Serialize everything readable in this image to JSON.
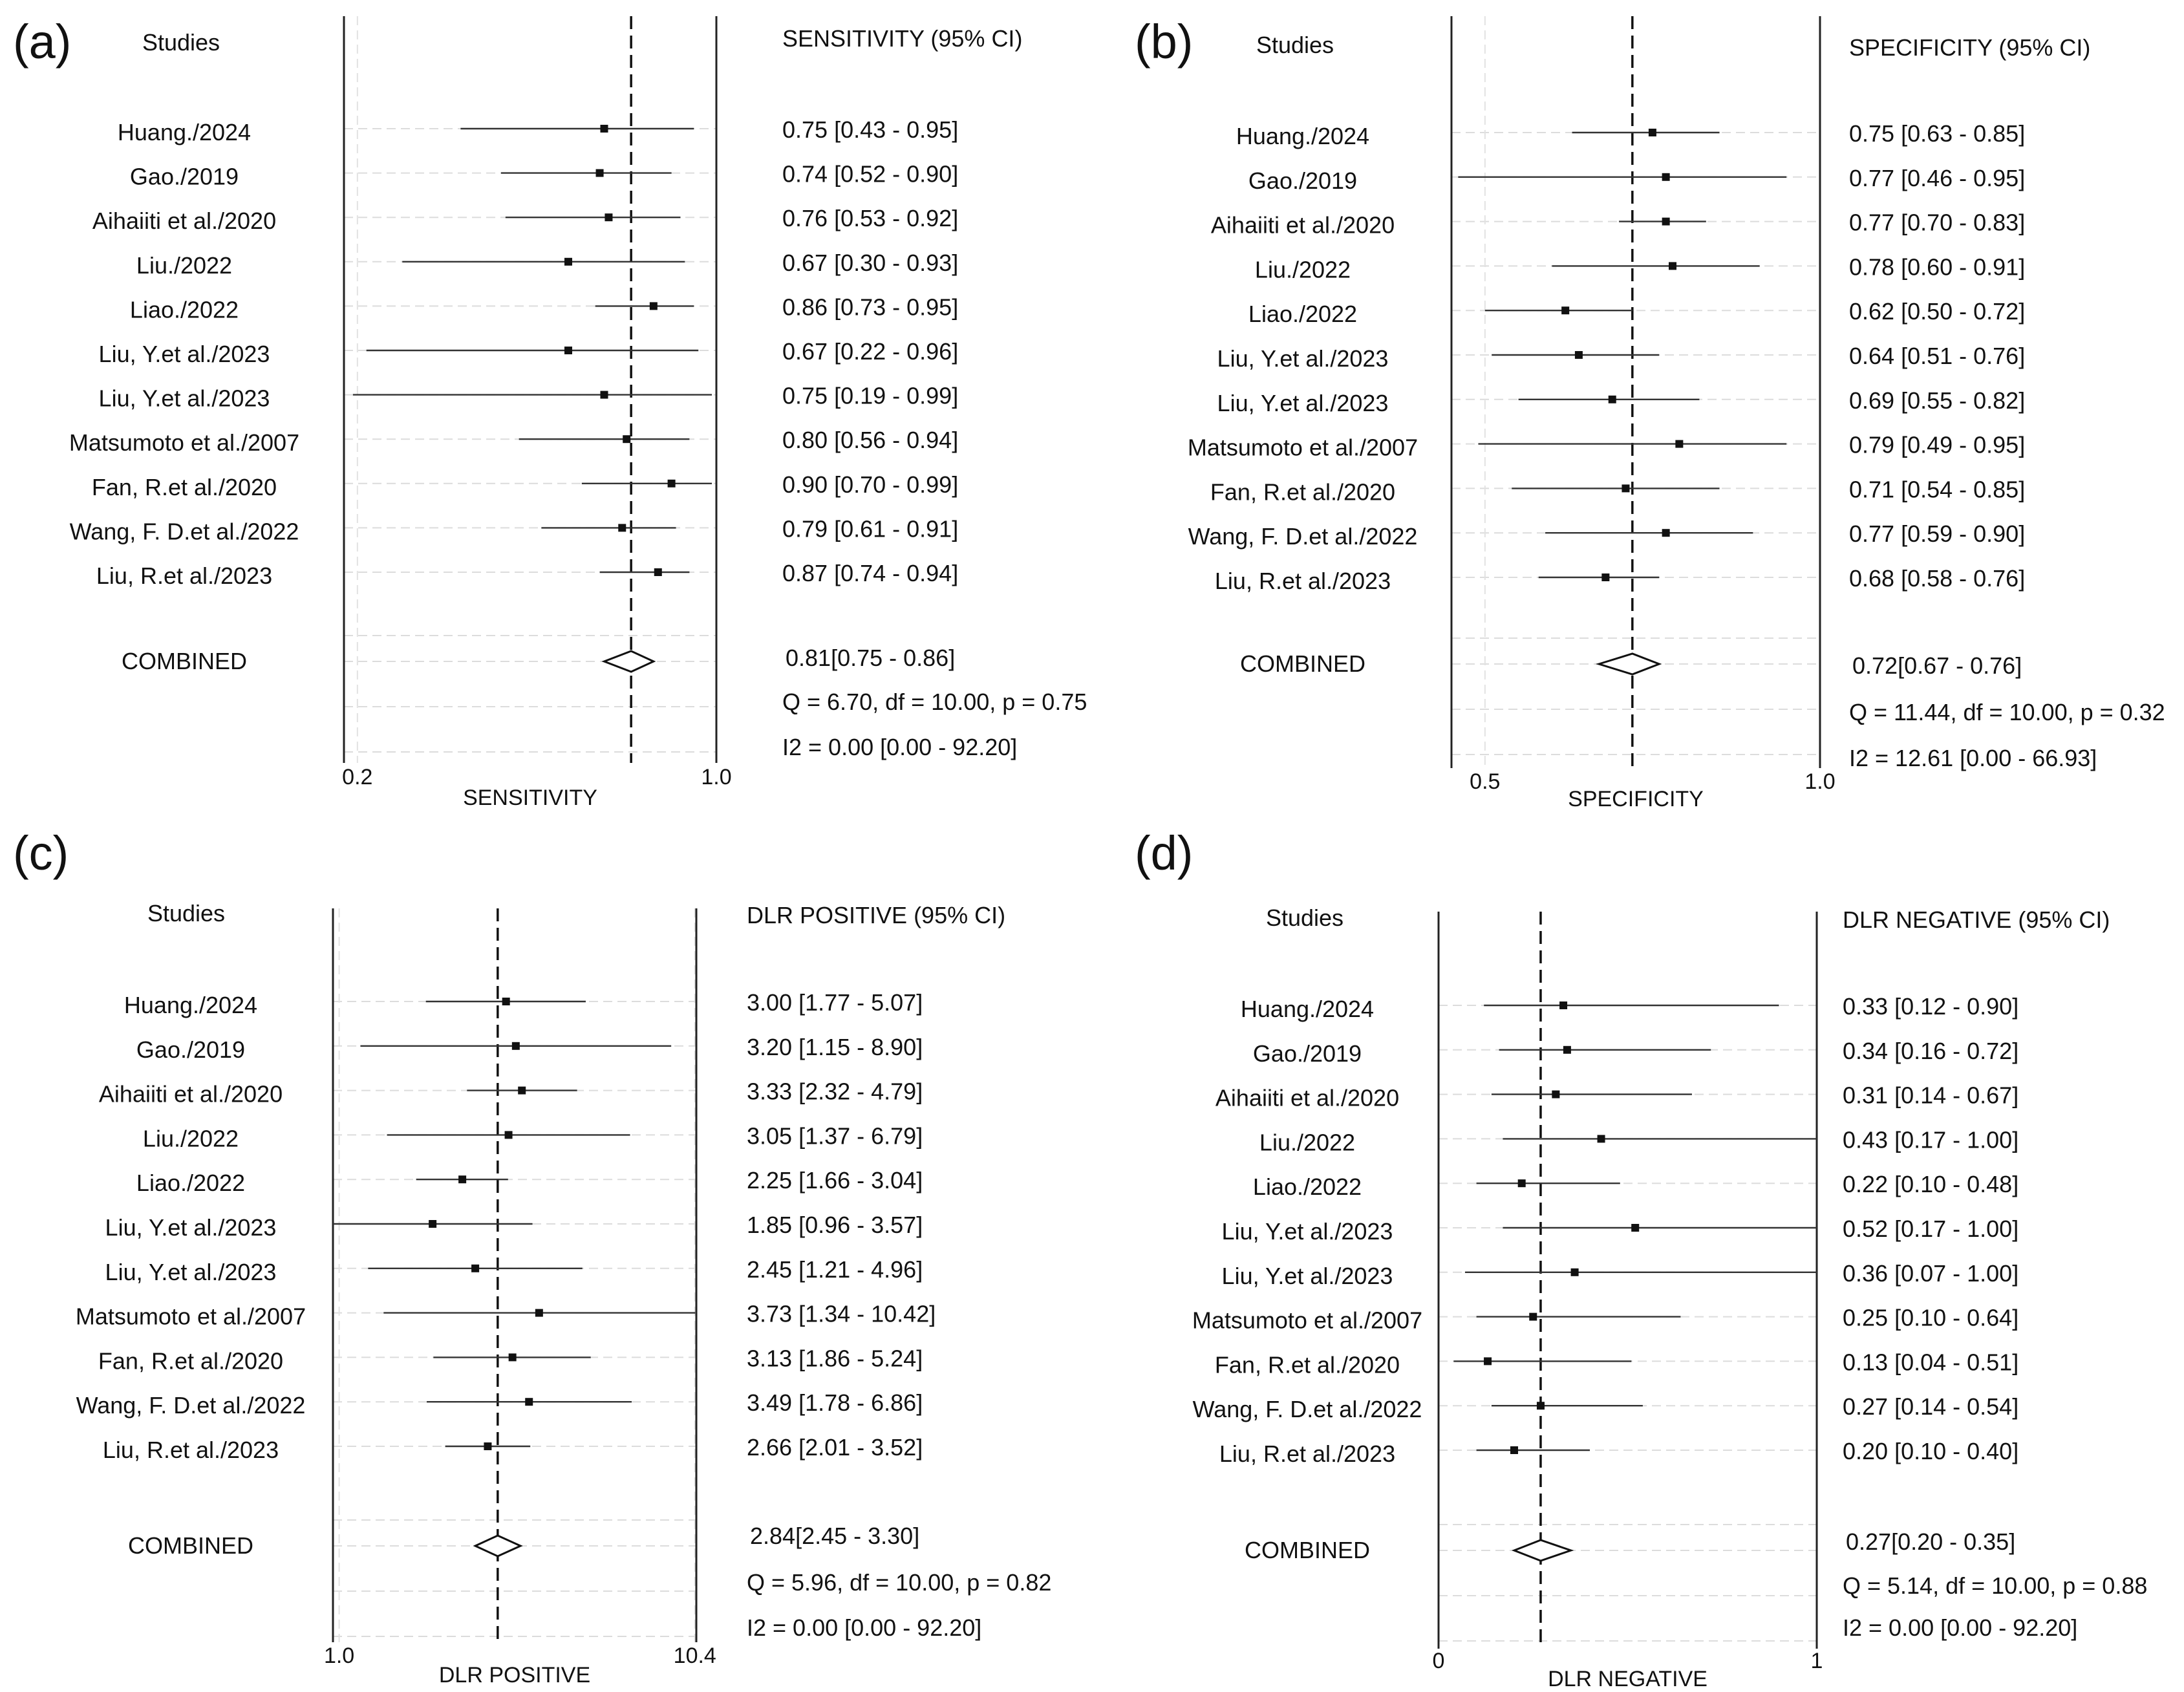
{
  "chart_data": [
    {
      "type": "forest",
      "panel": "(a)",
      "studies_header": "Studies",
      "value_header": "SENSITIVITY (95% CI)",
      "xlabel": "SENSITIVITY",
      "xlim": [
        0.17,
        1.0
      ],
      "tick_labels": [
        {
          "value": 0.2,
          "label": "0.2"
        },
        {
          "value": 1.0,
          "label": "1.0"
        }
      ],
      "reference_line": 0.81,
      "studies": [
        {
          "name": "Huang./2024",
          "est": 0.75,
          "lo": 0.43,
          "hi": 0.95,
          "text": "0.75 [0.43 - 0.95]"
        },
        {
          "name": "Gao./2019",
          "est": 0.74,
          "lo": 0.52,
          "hi": 0.9,
          "text": "0.74 [0.52 - 0.90]"
        },
        {
          "name": "Aihaiiti et al./2020",
          "est": 0.76,
          "lo": 0.53,
          "hi": 0.92,
          "text": "0.76 [0.53 - 0.92]"
        },
        {
          "name": "Liu./2022",
          "est": 0.67,
          "lo": 0.3,
          "hi": 0.93,
          "text": "0.67 [0.30 - 0.93]"
        },
        {
          "name": "Liao./2022",
          "est": 0.86,
          "lo": 0.73,
          "hi": 0.95,
          "text": "0.86 [0.73 - 0.95]"
        },
        {
          "name": "Liu, Y.et al./2023",
          "est": 0.67,
          "lo": 0.22,
          "hi": 0.96,
          "text": "0.67 [0.22 - 0.96]"
        },
        {
          "name": "Liu, Y.et al./2023",
          "est": 0.75,
          "lo": 0.19,
          "hi": 0.99,
          "text": "0.75 [0.19 - 0.99]"
        },
        {
          "name": "Matsumoto et al./2007",
          "est": 0.8,
          "lo": 0.56,
          "hi": 0.94,
          "text": "0.80 [0.56 - 0.94]"
        },
        {
          "name": "Fan, R.et al./2020",
          "est": 0.9,
          "lo": 0.7,
          "hi": 0.99,
          "text": "0.90 [0.70 - 0.99]"
        },
        {
          "name": "Wang, F. D.et al./2022",
          "est": 0.79,
          "lo": 0.61,
          "hi": 0.91,
          "text": "0.79 [0.61 - 0.91]"
        },
        {
          "name": "Liu, R.et al./2023",
          "est": 0.87,
          "lo": 0.74,
          "hi": 0.94,
          "text": "0.87 [0.74 - 0.94]"
        }
      ],
      "combined": {
        "name": "COMBINED",
        "est": 0.81,
        "lo": 0.75,
        "hi": 0.86,
        "text": "0.81[0.75 - 0.86]"
      },
      "heterogeneity": [
        "Q =  6.70, df = 10.00, p =  0.75",
        "I2 = 0.00 [0.00 - 92.20]"
      ]
    },
    {
      "type": "forest",
      "panel": "(b)",
      "studies_header": "Studies",
      "value_header": "SPECIFICITY (95% CI)",
      "xlabel": "SPECIFICITY",
      "xlim": [
        0.45,
        1.0
      ],
      "tick_labels": [
        {
          "value": 0.5,
          "label": "0.5"
        },
        {
          "value": 1.0,
          "label": "1.0"
        }
      ],
      "reference_line": 0.72,
      "studies": [
        {
          "name": "Huang./2024",
          "est": 0.75,
          "lo": 0.63,
          "hi": 0.85,
          "text": "0.75 [0.63 - 0.85]"
        },
        {
          "name": "Gao./2019",
          "est": 0.77,
          "lo": 0.46,
          "hi": 0.95,
          "text": "0.77 [0.46 - 0.95]"
        },
        {
          "name": "Aihaiiti et al./2020",
          "est": 0.77,
          "lo": 0.7,
          "hi": 0.83,
          "text": "0.77 [0.70 - 0.83]"
        },
        {
          "name": "Liu./2022",
          "est": 0.78,
          "lo": 0.6,
          "hi": 0.91,
          "text": "0.78 [0.60 - 0.91]"
        },
        {
          "name": "Liao./2022",
          "est": 0.62,
          "lo": 0.5,
          "hi": 0.72,
          "text": "0.62 [0.50 - 0.72]"
        },
        {
          "name": "Liu, Y.et al./2023",
          "est": 0.64,
          "lo": 0.51,
          "hi": 0.76,
          "text": "0.64 [0.51 - 0.76]"
        },
        {
          "name": "Liu, Y.et al./2023",
          "est": 0.69,
          "lo": 0.55,
          "hi": 0.82,
          "text": "0.69 [0.55 - 0.82]"
        },
        {
          "name": "Matsumoto et al./2007",
          "est": 0.79,
          "lo": 0.49,
          "hi": 0.95,
          "text": "0.79 [0.49 - 0.95]"
        },
        {
          "name": "Fan, R.et al./2020",
          "est": 0.71,
          "lo": 0.54,
          "hi": 0.85,
          "text": "0.71 [0.54 - 0.85]"
        },
        {
          "name": "Wang, F. D.et al./2022",
          "est": 0.77,
          "lo": 0.59,
          "hi": 0.9,
          "text": "0.77 [0.59 - 0.90]"
        },
        {
          "name": "Liu, R.et al./2023",
          "est": 0.68,
          "lo": 0.58,
          "hi": 0.76,
          "text": "0.68 [0.58 - 0.76]"
        }
      ],
      "combined": {
        "name": "COMBINED",
        "est": 0.72,
        "lo": 0.67,
        "hi": 0.76,
        "text": "0.72[0.67 - 0.76]"
      },
      "heterogeneity": [
        "Q = 11.44, df = 10.00, p =  0.32",
        "I2 = 12.61 [0.00 - 66.93]"
      ]
    },
    {
      "type": "forest",
      "panel": "(c)",
      "studies_header": "Studies",
      "value_header": "DLR POSITIVE (95% CI)",
      "xlabel": "DLR POSITIVE",
      "xscale": "log",
      "xlim": [
        0.96,
        10.5
      ],
      "tick_labels": [
        {
          "value": 1.0,
          "label": "1.0"
        },
        {
          "value": 10.4,
          "label": "10.4"
        }
      ],
      "reference_line": 2.84,
      "studies": [
        {
          "name": "Huang./2024",
          "est": 3.0,
          "lo": 1.77,
          "hi": 5.07,
          "text": "3.00 [1.77 - 5.07]"
        },
        {
          "name": "Gao./2019",
          "est": 3.2,
          "lo": 1.15,
          "hi": 8.9,
          "text": "3.20 [1.15 - 8.90]"
        },
        {
          "name": "Aihaiiti et al./2020",
          "est": 3.33,
          "lo": 2.32,
          "hi": 4.79,
          "text": "3.33 [2.32 - 4.79]"
        },
        {
          "name": "Liu./2022",
          "est": 3.05,
          "lo": 1.37,
          "hi": 6.79,
          "text": "3.05 [1.37 - 6.79]"
        },
        {
          "name": "Liao./2022",
          "est": 2.25,
          "lo": 1.66,
          "hi": 3.04,
          "text": "2.25 [1.66 - 3.04]"
        },
        {
          "name": "Liu, Y.et al./2023",
          "est": 1.85,
          "lo": 0.96,
          "hi": 3.57,
          "text": "1.85 [0.96 - 3.57]"
        },
        {
          "name": "Liu, Y.et al./2023",
          "est": 2.45,
          "lo": 1.21,
          "hi": 4.96,
          "text": "2.45 [1.21 - 4.96]"
        },
        {
          "name": "Matsumoto et al./2007",
          "est": 3.73,
          "lo": 1.34,
          "hi": 10.42,
          "text": "3.73 [1.34 - 10.42]"
        },
        {
          "name": "Fan, R.et al./2020",
          "est": 3.13,
          "lo": 1.86,
          "hi": 5.24,
          "text": "3.13 [1.86 - 5.24]"
        },
        {
          "name": "Wang, F. D.et al./2022",
          "est": 3.49,
          "lo": 1.78,
          "hi": 6.86,
          "text": "3.49 [1.78 - 6.86]"
        },
        {
          "name": "Liu, R.et al./2023",
          "est": 2.66,
          "lo": 2.01,
          "hi": 3.52,
          "text": "2.66 [2.01 - 3.52]"
        }
      ],
      "combined": {
        "name": "COMBINED",
        "est": 2.84,
        "lo": 2.45,
        "hi": 3.3,
        "text": "2.84[2.45 - 3.30]"
      },
      "heterogeneity": [
        "Q =  5.96, df = 10.00, p =  0.82",
        "I2 = 0.00 [0.00 - 92.20]"
      ]
    },
    {
      "type": "forest",
      "panel": "(d)",
      "studies_header": "Studies",
      "value_header": "DLR NEGATIVE (95% CI)",
      "xlabel": "DLR NEGATIVE",
      "xlim": [
        0,
        1.0
      ],
      "tick_labels": [
        {
          "value": 0,
          "label": "0"
        },
        {
          "value": 1,
          "label": "1"
        }
      ],
      "reference_line": 0.27,
      "studies": [
        {
          "name": "Huang./2024",
          "est": 0.33,
          "lo": 0.12,
          "hi": 0.9,
          "text": "0.33 [0.12 - 0.90]"
        },
        {
          "name": "Gao./2019",
          "est": 0.34,
          "lo": 0.16,
          "hi": 0.72,
          "text": "0.34 [0.16 - 0.72]"
        },
        {
          "name": "Aihaiiti et al./2020",
          "est": 0.31,
          "lo": 0.14,
          "hi": 0.67,
          "text": "0.31 [0.14 - 0.67]"
        },
        {
          "name": "Liu./2022",
          "est": 0.43,
          "lo": 0.17,
          "hi": 1.0,
          "text": "0.43 [0.17 - 1.00]"
        },
        {
          "name": "Liao./2022",
          "est": 0.22,
          "lo": 0.1,
          "hi": 0.48,
          "text": "0.22 [0.10 - 0.48]"
        },
        {
          "name": "Liu, Y.et al./2023",
          "est": 0.52,
          "lo": 0.17,
          "hi": 1.0,
          "text": "0.52 [0.17 - 1.00]"
        },
        {
          "name": "Liu, Y.et al./2023",
          "est": 0.36,
          "lo": 0.07,
          "hi": 1.0,
          "text": "0.36 [0.07 - 1.00]"
        },
        {
          "name": "Matsumoto et al./2007",
          "est": 0.25,
          "lo": 0.1,
          "hi": 0.64,
          "text": "0.25 [0.10 - 0.64]"
        },
        {
          "name": "Fan, R.et al./2020",
          "est": 0.13,
          "lo": 0.04,
          "hi": 0.51,
          "text": "0.13 [0.04 - 0.51]"
        },
        {
          "name": "Wang, F. D.et al./2022",
          "est": 0.27,
          "lo": 0.14,
          "hi": 0.54,
          "text": "0.27 [0.14 - 0.54]"
        },
        {
          "name": "Liu, R.et al./2023",
          "est": 0.2,
          "lo": 0.1,
          "hi": 0.4,
          "text": "0.20 [0.10 - 0.40]"
        }
      ],
      "combined": {
        "name": "COMBINED",
        "est": 0.27,
        "lo": 0.2,
        "hi": 0.35,
        "text": "0.27[0.20 - 0.35]"
      },
      "heterogeneity": [
        "Q =  5.14, df = 10.00, p =  0.88",
        "I2 = 0.00 [0.00 - 92.20]"
      ]
    }
  ]
}
